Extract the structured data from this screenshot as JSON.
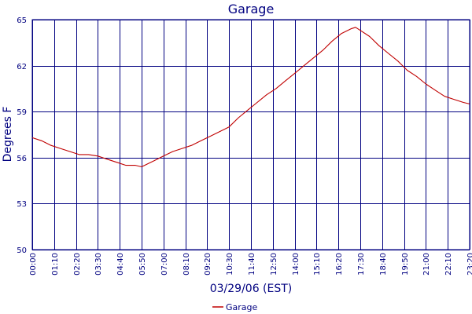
{
  "chart_data": {
    "type": "line",
    "title": "Garage",
    "xlabel": "03/29/06 (EST)",
    "ylabel": "Degrees F",
    "ylim": [
      50,
      65
    ],
    "yticks": [
      50,
      53,
      56,
      59,
      62,
      65
    ],
    "xlim": [
      "00:00",
      "23:20"
    ],
    "xticks": [
      "00:00",
      "01:10",
      "02:20",
      "03:30",
      "04:40",
      "05:50",
      "07:00",
      "08:10",
      "09:20",
      "10:30",
      "11:40",
      "12:50",
      "14:00",
      "15:10",
      "16:20",
      "17:30",
      "18:40",
      "19:50",
      "21:00",
      "22:10",
      "23:20"
    ],
    "grid": true,
    "legend_position": "bottom-center",
    "series": [
      {
        "name": "Garage",
        "color": "#c00000",
        "x": [
          "00:00",
          "00:30",
          "01:00",
          "01:30",
          "02:00",
          "02:30",
          "03:00",
          "03:30",
          "04:00",
          "04:30",
          "05:00",
          "05:30",
          "05:50",
          "06:10",
          "06:30",
          "07:00",
          "07:30",
          "08:00",
          "08:30",
          "09:00",
          "09:30",
          "10:00",
          "10:30",
          "11:00",
          "11:30",
          "12:00",
          "12:30",
          "13:00",
          "13:30",
          "14:00",
          "14:30",
          "15:00",
          "15:30",
          "16:00",
          "16:30",
          "17:00",
          "17:15",
          "17:30",
          "18:00",
          "18:30",
          "19:00",
          "19:30",
          "20:00",
          "20:30",
          "21:00",
          "21:30",
          "22:00",
          "22:30",
          "23:00",
          "23:20"
        ],
        "values": [
          57.3,
          57.1,
          56.8,
          56.6,
          56.4,
          56.2,
          56.2,
          56.1,
          55.9,
          55.7,
          55.5,
          55.5,
          55.4,
          55.6,
          55.8,
          56.1,
          56.4,
          56.6,
          56.8,
          57.1,
          57.4,
          57.7,
          58.0,
          58.6,
          59.1,
          59.6,
          60.1,
          60.5,
          61.0,
          61.5,
          62.0,
          62.5,
          63.0,
          63.6,
          64.1,
          64.4,
          64.5,
          64.3,
          63.9,
          63.3,
          62.8,
          62.3,
          61.7,
          61.3,
          60.8,
          60.4,
          60.0,
          59.8,
          59.6,
          59.5
        ]
      }
    ]
  }
}
